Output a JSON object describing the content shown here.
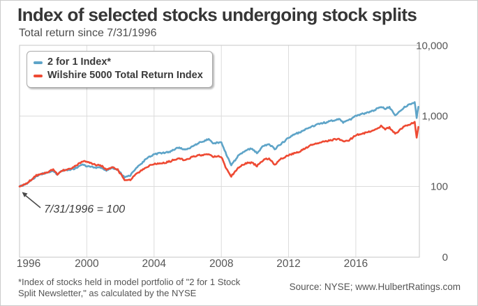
{
  "header": {
    "title": "Index of selected stocks undergoing stock splits",
    "subtitle": "Total return since 7/31/1996"
  },
  "legend": {
    "items": [
      {
        "label": "2 for 1 Index*",
        "color": "#5ea4c8"
      },
      {
        "label": "Wilshire 5000 Total Return Index",
        "color": "#ee4a33"
      }
    ]
  },
  "annotation": {
    "text": "7/31/1996 = 100"
  },
  "footnote": {
    "line1": "*Index of stocks held in model portfolio of \"2 for 1 Stock",
    "line2": "Split Newsletter,\" as calculated by the NYSE"
  },
  "source": {
    "text": "Source: NYSE; www.HulbertRatings.com"
  },
  "colors": {
    "grid": "#dcdcdc",
    "plot_border": "#c6c6c6",
    "tick_label": "#565656",
    "arrow": "#4a4a4a"
  },
  "chart_data": {
    "type": "line",
    "title": "Index of selected stocks undergoing stock splits",
    "subtitle": "Total return since 7/31/1996",
    "xlabel": "",
    "ylabel": "",
    "y_scale": "log",
    "grid": true,
    "legend_position": "top-left",
    "baseline_note": "7/31/1996 = 100",
    "x_range": [
      1996.58,
      2020.36
    ],
    "y_ticks": [
      {
        "label": "10,000",
        "value": 10000
      },
      {
        "label": "1,000",
        "value": 1000
      },
      {
        "label": "100",
        "value": 100
      },
      {
        "label": "0",
        "value": null
      }
    ],
    "x_ticks": [
      {
        "label": "1996",
        "t": 1996.58
      },
      {
        "label": "2000",
        "t": 2000.58
      },
      {
        "label": "2004",
        "t": 2004.58
      },
      {
        "label": "2008",
        "t": 2008.58
      },
      {
        "label": "2012",
        "t": 2012.58
      },
      {
        "label": "2016",
        "t": 2016.58
      }
    ],
    "x_years": [
      1996.58,
      1997.08,
      1997.58,
      1998.08,
      1998.58,
      1998.83,
      1999.08,
      1999.58,
      2000.08,
      2000.33,
      2000.58,
      2001.08,
      2001.5,
      2001.75,
      2002.08,
      2002.42,
      2002.83,
      2003.17,
      2003.58,
      2004.08,
      2004.58,
      2005.08,
      2005.58,
      2006.08,
      2006.42,
      2006.83,
      2007.33,
      2007.83,
      2008.08,
      2008.58,
      2008.83,
      2009.17,
      2009.58,
      2010.08,
      2010.42,
      2010.7,
      2011.08,
      2011.42,
      2011.75,
      2012.08,
      2012.58,
      2013.08,
      2013.58,
      2014.08,
      2014.58,
      2015.08,
      2015.58,
      2015.83,
      2016.17,
      2016.58,
      2017.08,
      2017.58,
      2018.08,
      2018.33,
      2018.58,
      2018.92,
      2019.42,
      2019.75,
      2020.08,
      2020.2,
      2020.3
    ],
    "series": [
      {
        "name": "2 for 1 Index*",
        "color": "#5ea4c8",
        "values": [
          100,
          115,
          135,
          152,
          168,
          142,
          162,
          178,
          195,
          205,
          195,
          190,
          180,
          162,
          180,
          172,
          135,
          142,
          190,
          250,
          285,
          300,
          310,
          345,
          330,
          370,
          420,
          485,
          430,
          415,
          300,
          200,
          270,
          320,
          340,
          305,
          380,
          400,
          345,
          410,
          490,
          560,
          640,
          700,
          800,
          870,
          900,
          830,
          900,
          1000,
          1060,
          1180,
          1330,
          1240,
          1320,
          1060,
          1330,
          1450,
          1600,
          970,
          1350
        ]
      },
      {
        "name": "Wilshire 5000 Total Return Index",
        "color": "#ee4a33",
        "values": [
          100,
          114,
          138,
          155,
          172,
          145,
          168,
          185,
          210,
          225,
          228,
          205,
          188,
          165,
          185,
          175,
          122,
          125,
          160,
          190,
          205,
          215,
          222,
          245,
          238,
          262,
          280,
          295,
          270,
          260,
          185,
          140,
          180,
          210,
          220,
          200,
          240,
          250,
          210,
          250,
          270,
          300,
          345,
          390,
          440,
          460,
          475,
          440,
          465,
          520,
          560,
          620,
          700,
          650,
          700,
          580,
          700,
          760,
          840,
          510,
          700
        ]
      }
    ]
  }
}
